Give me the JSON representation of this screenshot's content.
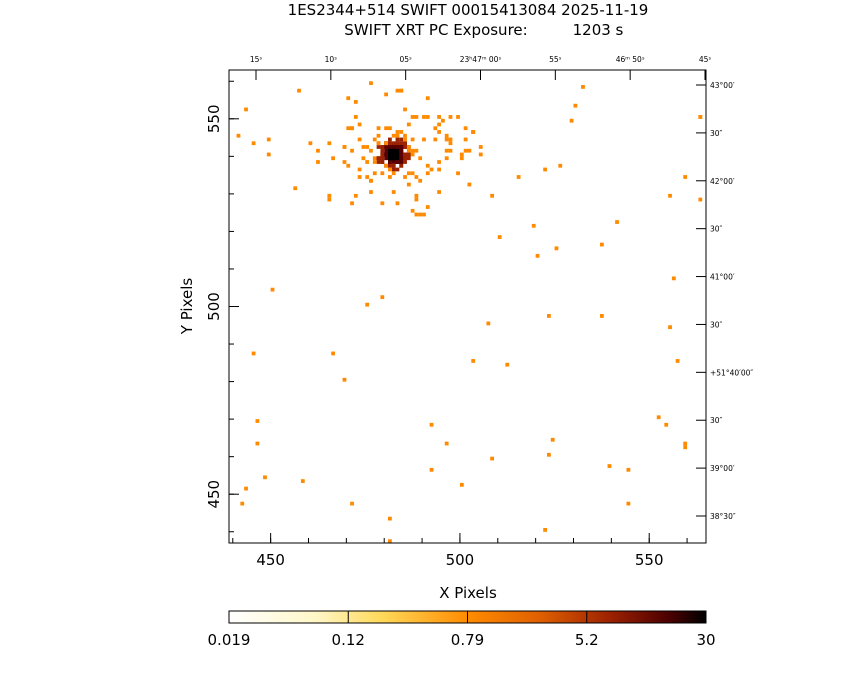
{
  "header": {
    "line1": "1ES2344+514 SWIFT 00015413084 2025-11-19",
    "line2_label": "SWIFT XRT PC Exposure:",
    "line2_value": "1203 s"
  },
  "colors": {
    "cmap": [
      "#ffffff",
      "#fff6c4",
      "#ffe070",
      "#ffb13a",
      "#ff8a00",
      "#d85400",
      "#9a2200",
      "#5a0000",
      "#000000"
    ]
  },
  "chart_data": {
    "type": "heatmap",
    "title": "1ES2344+514 SWIFT 00015413084 2025-11-19",
    "subtitle": "SWIFT XRT PC Exposure: 1203 s",
    "xlabel": "X Pixels",
    "ylabel": "Y Pixels",
    "xlim": [
      439,
      565
    ],
    "ylim": [
      437,
      563
    ],
    "x_ticks": [
      "450",
      "500",
      "550"
    ],
    "y_ticks": [
      "450",
      "500",
      "550"
    ],
    "ra_ticks": [
      "15ˢ",
      "10ˢ",
      "05ˢ",
      "23ʰ47ᵐ 00ˢ",
      "55ˢ",
      "46ᵐ 50ˢ",
      "45ˢ"
    ],
    "dec_ticks": [
      "43°00′",
      "30″",
      "42°00′",
      "30″",
      "41°00′",
      "30″",
      "+51°40′00″",
      "30″",
      "39°00′",
      "38°30″"
    ],
    "colorbar": {
      "scale": "log",
      "range": [
        0.019,
        30
      ],
      "tick_labels": [
        "0.019",
        "0.12",
        "0.79",
        "5.2",
        "30"
      ]
    },
    "source_peak": [
      482,
      541
    ],
    "grid": false
  }
}
